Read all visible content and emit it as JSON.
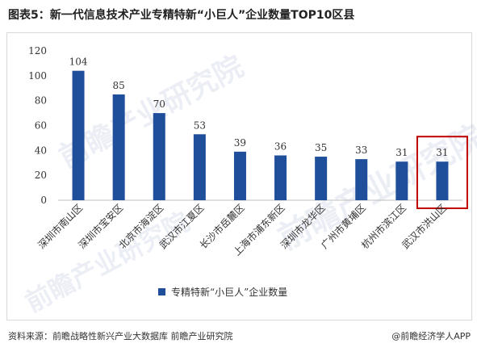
{
  "header": {
    "title": "图表5：新一代信息技术产业专精特新“小巨人”企业数量TOP10区县"
  },
  "watermark": {
    "text": "前瞻产业研究院"
  },
  "chart_data": {
    "type": "bar",
    "categories": [
      "深圳市南山区",
      "深圳市宝安区",
      "北京市海淀区",
      "武汉市江夏区",
      "长沙市岳麓区",
      "上海市浦东新区",
      "深圳市龙华区",
      "广州市黄埔区",
      "杭州市滨江区",
      "武汉市洪山区"
    ],
    "series": [
      {
        "name": "专精特新“小巨人”企业数量",
        "values": [
          104,
          85,
          70,
          53,
          39,
          36,
          35,
          33,
          31,
          31
        ]
      }
    ],
    "ylim": [
      0,
      120
    ],
    "yticks": [
      0,
      20,
      40,
      60,
      80,
      100,
      120
    ],
    "highlight_index": 9,
    "bar_color": "#1f4e9b",
    "highlight_color": "#c00000",
    "grid": false,
    "legend_position": "bottom"
  },
  "footer": {
    "source": "资料来源：前瞻战略性新兴产业大数据库 前瞻产业研究院",
    "brand": "@前瞻经济学人APP"
  }
}
